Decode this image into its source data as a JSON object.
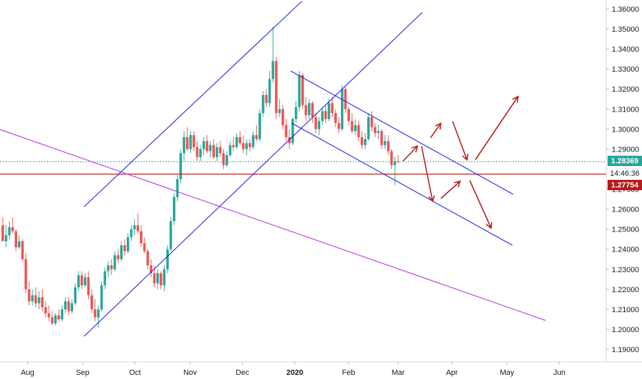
{
  "chart_data": {
    "type": "candlestick",
    "y_axis": {
      "range": [
        1.1855,
        1.3655
      ],
      "ticks": [
        "1.19000",
        "1.20000",
        "1.21000",
        "1.22000",
        "1.23000",
        "1.24000",
        "1.25000",
        "1.26000",
        "1.27000",
        "1.28000",
        "1.29000",
        "1.30000",
        "1.31000",
        "1.32000",
        "1.33000",
        "1.34000",
        "1.35000",
        "1.36000"
      ]
    },
    "x_axis": {
      "ticks": [
        {
          "label": "Aug",
          "bold": false
        },
        {
          "label": "Sep",
          "bold": false
        },
        {
          "label": "Oct",
          "bold": false
        },
        {
          "label": "Nov",
          "bold": false
        },
        {
          "label": "Dec",
          "bold": false
        },
        {
          "label": "2020",
          "bold": true
        },
        {
          "label": "Feb",
          "bold": false
        },
        {
          "label": "Mar",
          "bold": false
        },
        {
          "label": "Apr",
          "bold": false
        },
        {
          "label": "May",
          "bold": false
        },
        {
          "label": "Jun",
          "bold": false
        }
      ]
    },
    "price_tags": {
      "last_price": {
        "label": "1.28369",
        "color": "#26a69a",
        "value": 1.28369
      },
      "countdown": {
        "label": "14:46:36"
      },
      "horizontal_level": {
        "label": "1.27754",
        "color": "#b71c1c",
        "value": 1.27754
      }
    },
    "colors": {
      "up": "#26a69a",
      "down": "#ef5350",
      "channel": "#1e22dc",
      "trendline": "#c040e0",
      "arrows": "#b71c1c",
      "level": "#b71c1c"
    },
    "candles_ohlc": [
      [
        1.252,
        1.256,
        1.246,
        1.244
      ],
      [
        1.244,
        1.252,
        1.241,
        1.247
      ],
      [
        1.247,
        1.254,
        1.245,
        1.251
      ],
      [
        1.251,
        1.256,
        1.248,
        1.249
      ],
      [
        1.249,
        1.25,
        1.239,
        1.241
      ],
      [
        1.241,
        1.247,
        1.24,
        1.244
      ],
      [
        1.244,
        1.245,
        1.234,
        1.235
      ],
      [
        1.235,
        1.238,
        1.218,
        1.22
      ],
      [
        1.22,
        1.224,
        1.212,
        1.214
      ],
      [
        1.214,
        1.22,
        1.212,
        1.217
      ],
      [
        1.217,
        1.221,
        1.211,
        1.213
      ],
      [
        1.213,
        1.219,
        1.21,
        1.216
      ],
      [
        1.216,
        1.22,
        1.209,
        1.211
      ],
      [
        1.211,
        1.214,
        1.206,
        1.208
      ],
      [
        1.208,
        1.212,
        1.204,
        1.206
      ],
      [
        1.206,
        1.209,
        1.202,
        1.203
      ],
      [
        1.203,
        1.208,
        1.202,
        1.207
      ],
      [
        1.207,
        1.21,
        1.204,
        1.205
      ],
      [
        1.205,
        1.212,
        1.204,
        1.21
      ],
      [
        1.21,
        1.216,
        1.208,
        1.214
      ],
      [
        1.214,
        1.216,
        1.207,
        1.209
      ],
      [
        1.209,
        1.215,
        1.208,
        1.213
      ],
      [
        1.213,
        1.223,
        1.212,
        1.221
      ],
      [
        1.221,
        1.229,
        1.219,
        1.227
      ],
      [
        1.227,
        1.229,
        1.22,
        1.222
      ],
      [
        1.222,
        1.228,
        1.221,
        1.226
      ],
      [
        1.226,
        1.229,
        1.215,
        1.217
      ],
      [
        1.217,
        1.22,
        1.208,
        1.21
      ],
      [
        1.21,
        1.215,
        1.204,
        1.206
      ],
      [
        1.206,
        1.212,
        1.201,
        1.21
      ],
      [
        1.21,
        1.224,
        1.209,
        1.222
      ],
      [
        1.222,
        1.231,
        1.22,
        1.229
      ],
      [
        1.229,
        1.234,
        1.226,
        1.232
      ],
      [
        1.232,
        1.235,
        1.227,
        1.23
      ],
      [
        1.23,
        1.239,
        1.229,
        1.237
      ],
      [
        1.237,
        1.24,
        1.233,
        1.235
      ],
      [
        1.235,
        1.244,
        1.234,
        1.242
      ],
      [
        1.242,
        1.245,
        1.237,
        1.239
      ],
      [
        1.239,
        1.248,
        1.238,
        1.246
      ],
      [
        1.246,
        1.252,
        1.244,
        1.25
      ],
      [
        1.25,
        1.255,
        1.247,
        1.252
      ],
      [
        1.252,
        1.258,
        1.248,
        1.249
      ],
      [
        1.249,
        1.252,
        1.241,
        1.243
      ],
      [
        1.243,
        1.246,
        1.238,
        1.239
      ],
      [
        1.239,
        1.24,
        1.23,
        1.232
      ],
      [
        1.232,
        1.235,
        1.226,
        1.228
      ],
      [
        1.228,
        1.232,
        1.221,
        1.223
      ],
      [
        1.223,
        1.23,
        1.22,
        1.228
      ],
      [
        1.228,
        1.229,
        1.22,
        1.222
      ],
      [
        1.222,
        1.232,
        1.219,
        1.23
      ],
      [
        1.23,
        1.242,
        1.228,
        1.24
      ],
      [
        1.24,
        1.256,
        1.239,
        1.254
      ],
      [
        1.254,
        1.268,
        1.252,
        1.266
      ],
      [
        1.266,
        1.277,
        1.264,
        1.275
      ],
      [
        1.275,
        1.29,
        1.273,
        1.288
      ],
      [
        1.288,
        1.299,
        1.284,
        1.296
      ],
      [
        1.296,
        1.301,
        1.289,
        1.29
      ],
      [
        1.29,
        1.299,
        1.288,
        1.297
      ],
      [
        1.297,
        1.299,
        1.289,
        1.291
      ],
      [
        1.291,
        1.294,
        1.284,
        1.286
      ],
      [
        1.286,
        1.292,
        1.284,
        1.29
      ],
      [
        1.29,
        1.296,
        1.287,
        1.294
      ],
      [
        1.294,
        1.297,
        1.288,
        1.289
      ],
      [
        1.289,
        1.294,
        1.286,
        1.292
      ],
      [
        1.292,
        1.295,
        1.285,
        1.286
      ],
      [
        1.286,
        1.293,
        1.284,
        1.291
      ],
      [
        1.291,
        1.294,
        1.286,
        1.288
      ],
      [
        1.288,
        1.29,
        1.28,
        1.282
      ],
      [
        1.282,
        1.289,
        1.281,
        1.287
      ],
      [
        1.287,
        1.294,
        1.286,
        1.292
      ],
      [
        1.292,
        1.296,
        1.289,
        1.291
      ],
      [
        1.291,
        1.298,
        1.29,
        1.296
      ],
      [
        1.296,
        1.299,
        1.292,
        1.293
      ],
      [
        1.293,
        1.297,
        1.288,
        1.29
      ],
      [
        1.29,
        1.295,
        1.287,
        1.293
      ],
      [
        1.293,
        1.295,
        1.289,
        1.291
      ],
      [
        1.291,
        1.299,
        1.29,
        1.297
      ],
      [
        1.297,
        1.302,
        1.294,
        1.295
      ],
      [
        1.295,
        1.31,
        1.294,
        1.308
      ],
      [
        1.308,
        1.319,
        1.306,
        1.317
      ],
      [
        1.317,
        1.32,
        1.311,
        1.313
      ],
      [
        1.313,
        1.329,
        1.311,
        1.325
      ],
      [
        1.325,
        1.351,
        1.323,
        1.334
      ],
      [
        1.334,
        1.336,
        1.305,
        1.308
      ],
      [
        1.308,
        1.315,
        1.306,
        1.31
      ],
      [
        1.31,
        1.312,
        1.3,
        1.302
      ],
      [
        1.302,
        1.305,
        1.294,
        1.296
      ],
      [
        1.296,
        1.3,
        1.29,
        1.293
      ],
      [
        1.293,
        1.306,
        1.292,
        1.305
      ],
      [
        1.305,
        1.314,
        1.303,
        1.311
      ],
      [
        1.311,
        1.329,
        1.309,
        1.327
      ],
      [
        1.327,
        1.328,
        1.31,
        1.312
      ],
      [
        1.312,
        1.316,
        1.304,
        1.307
      ],
      [
        1.307,
        1.315,
        1.305,
        1.313
      ],
      [
        1.313,
        1.314,
        1.303,
        1.306
      ],
      [
        1.306,
        1.308,
        1.298,
        1.3
      ],
      [
        1.3,
        1.306,
        1.297,
        1.304
      ],
      [
        1.304,
        1.311,
        1.302,
        1.309
      ],
      [
        1.309,
        1.312,
        1.303,
        1.305
      ],
      [
        1.305,
        1.315,
        1.304,
        1.313
      ],
      [
        1.313,
        1.316,
        1.306,
        1.308
      ],
      [
        1.308,
        1.31,
        1.301,
        1.303
      ],
      [
        1.303,
        1.306,
        1.298,
        1.3
      ],
      [
        1.3,
        1.322,
        1.299,
        1.32
      ],
      [
        1.32,
        1.321,
        1.308,
        1.31
      ],
      [
        1.31,
        1.311,
        1.302,
        1.304
      ],
      [
        1.304,
        1.308,
        1.298,
        1.299
      ],
      [
        1.299,
        1.305,
        1.297,
        1.302
      ],
      [
        1.302,
        1.304,
        1.294,
        1.296
      ],
      [
        1.296,
        1.299,
        1.29,
        1.292
      ],
      [
        1.292,
        1.298,
        1.29,
        1.295
      ],
      [
        1.295,
        1.308,
        1.294,
        1.306
      ],
      [
        1.306,
        1.309,
        1.299,
        1.301
      ],
      [
        1.301,
        1.303,
        1.296,
        1.298
      ],
      [
        1.298,
        1.302,
        1.295,
        1.299
      ],
      [
        1.299,
        1.3,
        1.29,
        1.292
      ],
      [
        1.292,
        1.297,
        1.29,
        1.294
      ],
      [
        1.294,
        1.297,
        1.287,
        1.289
      ],
      [
        1.289,
        1.29,
        1.28,
        1.282
      ],
      [
        1.282,
        1.286,
        1.272,
        1.284
      ],
      [
        1.284,
        1.287,
        1.283,
        1.2837
      ]
    ],
    "drawings": {
      "ascending_channel": {
        "line1": [
          [
            1.1958,
            1.2612
          ],
          [
            1.3655,
            1.456
          ]
        ],
        "line2": [
          [
            1.1958,
            1.22
          ],
          [
            1.3655,
            1.41
          ]
        ]
      },
      "descending_channel": {
        "upper": [
          [
            1.329,
            1.267
          ],
          [
            1.329,
            1.267
          ]
        ],
        "lower": [
          [
            1.3025,
            1.242
          ],
          [
            1.3025,
            1.242
          ]
        ]
      }
    }
  }
}
